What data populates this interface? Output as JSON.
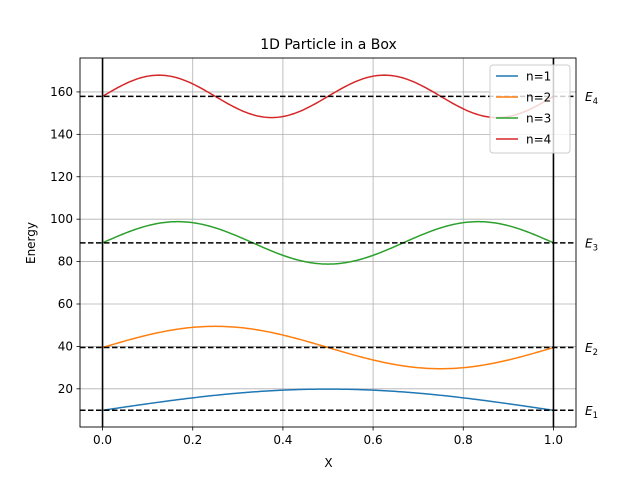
{
  "chart_data": {
    "type": "line",
    "title": "1D Particle in a Box",
    "xlabel": "X",
    "ylabel": "Energy",
    "xlim": [
      -0.05,
      1.05
    ],
    "ylim": [
      2,
      176
    ],
    "xticks": [
      0.0,
      0.2,
      0.4,
      0.6,
      0.8,
      1.0
    ],
    "xtick_labels": [
      "0.0",
      "0.2",
      "0.4",
      "0.6",
      "0.8",
      "1.0"
    ],
    "yticks": [
      20,
      40,
      60,
      80,
      100,
      120,
      140,
      160
    ],
    "ytick_labels": [
      "20",
      "40",
      "60",
      "80",
      "100",
      "120",
      "140",
      "160"
    ],
    "grid": true,
    "legend_position": "top-right",
    "box_walls": [
      0.0,
      1.0
    ],
    "amplitude": 10,
    "series": [
      {
        "name": "n=1",
        "n": 1,
        "energy": 9.87,
        "level_label": "E",
        "level_sub": "1",
        "color": "#1f77b4"
      },
      {
        "name": "n=2",
        "n": 2,
        "energy": 39.48,
        "level_label": "E",
        "level_sub": "2",
        "color": "#ff7f0e"
      },
      {
        "name": "n=3",
        "n": 3,
        "energy": 88.83,
        "level_label": "E",
        "level_sub": "3",
        "color": "#2ca02c"
      },
      {
        "name": "n=4",
        "n": 4,
        "energy": 157.91,
        "level_label": "E",
        "level_sub": "4",
        "color": "#d62728"
      }
    ],
    "level_line_color": "#000000",
    "wall_color": "#000000"
  }
}
